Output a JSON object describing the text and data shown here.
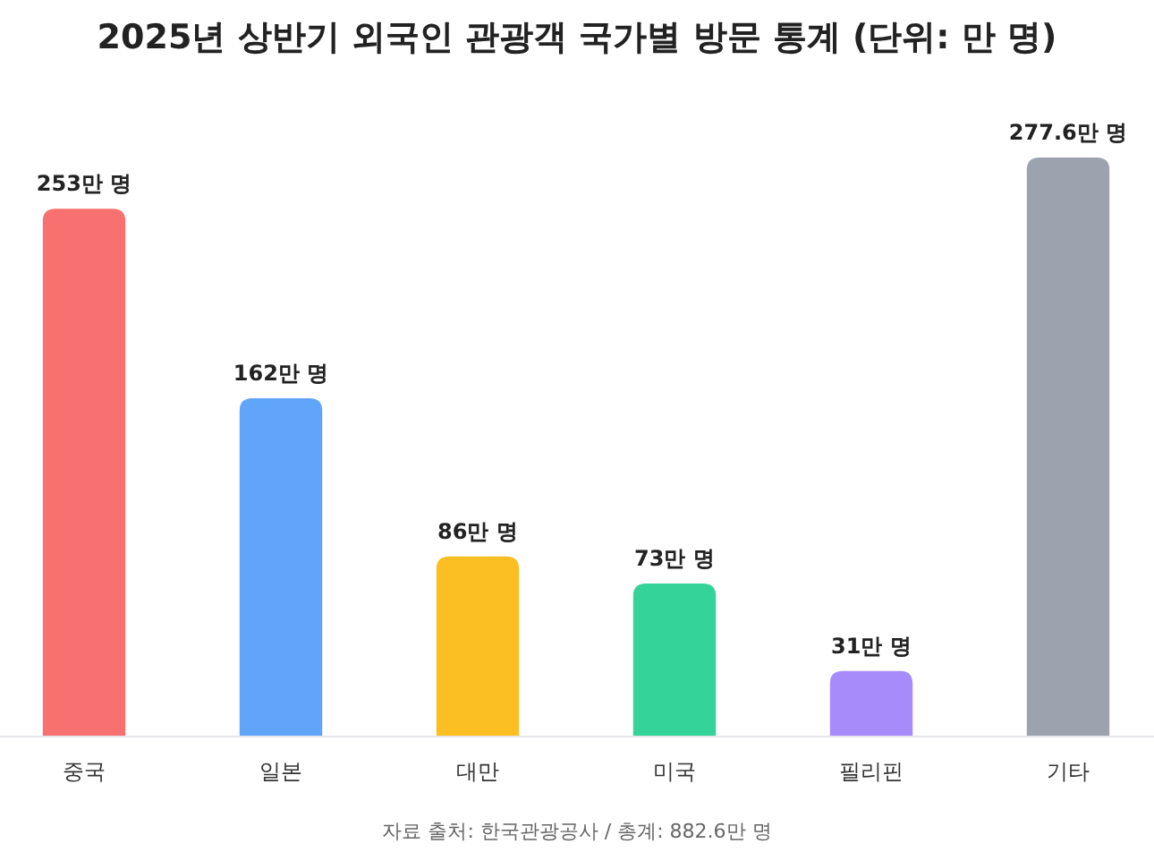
{
  "chart_data": {
    "type": "bar",
    "title": "2025년 상반기 외국인 관광객 국가별 방문 통계 (단위: 만 명)",
    "categories": [
      "중국",
      "일본",
      "대만",
      "미국",
      "필리핀",
      "기타"
    ],
    "values": [
      253,
      162,
      86,
      73,
      31,
      277.6
    ],
    "colors": [
      "#f87171",
      "#60a5fa",
      "#fbbf24",
      "#34d399",
      "#a78bfa",
      "#9ca3af"
    ],
    "value_labels": [
      "253만 명",
      "162만 명",
      "86만 명",
      "73만 명",
      "31만 명",
      "277.6만 명"
    ],
    "annotations": [
      "자료 출처: 한국관광공사 / 총계: 882.6만 명"
    ]
  }
}
